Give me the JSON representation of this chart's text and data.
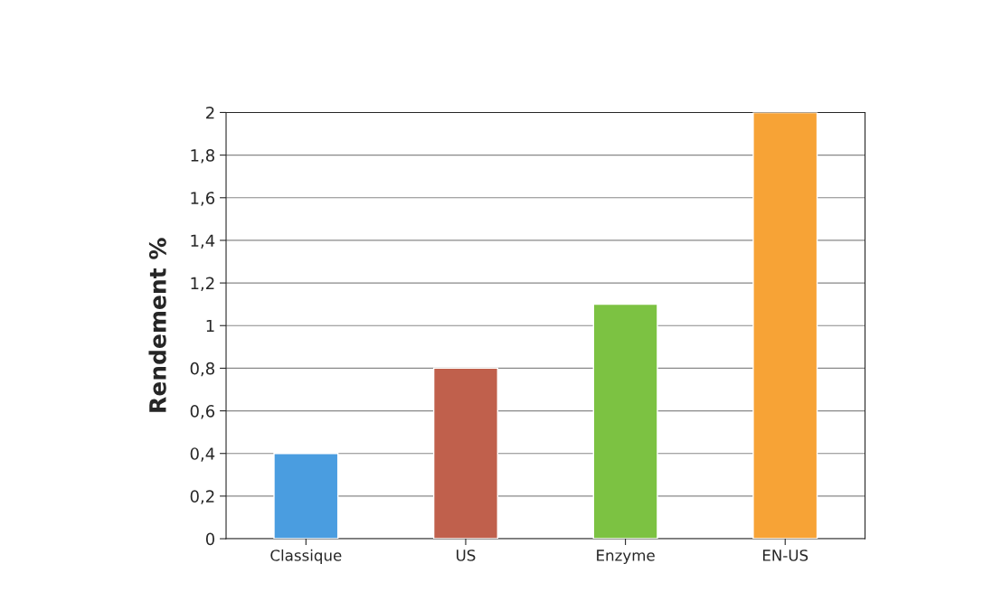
{
  "chart_data": {
    "type": "bar",
    "ylabel": "Rendement %",
    "categories": [
      "Classique",
      "US",
      "Enzyme",
      "EN-US"
    ],
    "values": [
      0.4,
      0.8,
      1.1,
      2.0
    ],
    "colors": [
      "#4a9de0",
      "#c0604c",
      "#7cc242",
      "#f7a336"
    ],
    "ylim": [
      0,
      2
    ],
    "yticks": [
      0,
      {
        "value": 0.2,
        "label": "0,2"
      },
      {
        "value": 0.4,
        "label": "0,4"
      },
      {
        "value": 0.6,
        "label": "0,6"
      },
      {
        "value": 0.8,
        "label": "0,8"
      },
      1,
      {
        "value": 1.2,
        "label": "1,2"
      },
      {
        "value": 1.4,
        "label": "1,4"
      },
      {
        "value": 1.6,
        "label": "1,6"
      },
      {
        "value": 1.8,
        "label": "1,8"
      },
      2
    ],
    "grid": "y"
  }
}
